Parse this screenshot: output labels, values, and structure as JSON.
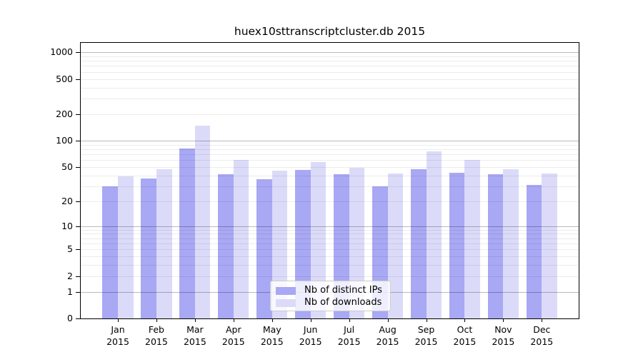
{
  "chart_data": {
    "type": "bar",
    "title": "huex10sttranscriptcluster.db 2015",
    "categories": [
      "Jan",
      "Feb",
      "Mar",
      "Apr",
      "May",
      "Jun",
      "Jul",
      "Aug",
      "Sep",
      "Oct",
      "Nov",
      "Dec"
    ],
    "x_tick_year": "2015",
    "series": [
      {
        "key": "distinct-ips",
        "name": "Nb of distinct IPs",
        "color": "#a8a8f4",
        "values": [
          30,
          37,
          82,
          41,
          36,
          46,
          41,
          30,
          47,
          43,
          41,
          31
        ]
      },
      {
        "key": "downloads",
        "name": "Nb of downloads",
        "color": "#dbdbf9",
        "values": [
          39,
          47,
          149,
          60,
          45,
          57,
          49,
          42,
          75,
          60,
          47,
          42
        ]
      }
    ],
    "y_ticks": [
      0,
      1,
      2,
      5,
      10,
      20,
      50,
      100,
      200,
      500,
      1000
    ],
    "y_scale": "log1p",
    "ylim": [
      0,
      1100
    ],
    "grid": true,
    "grid_minor_color": "#ececec",
    "grid_major_color": "#bababa",
    "legend_position": "lower-center-inside"
  }
}
